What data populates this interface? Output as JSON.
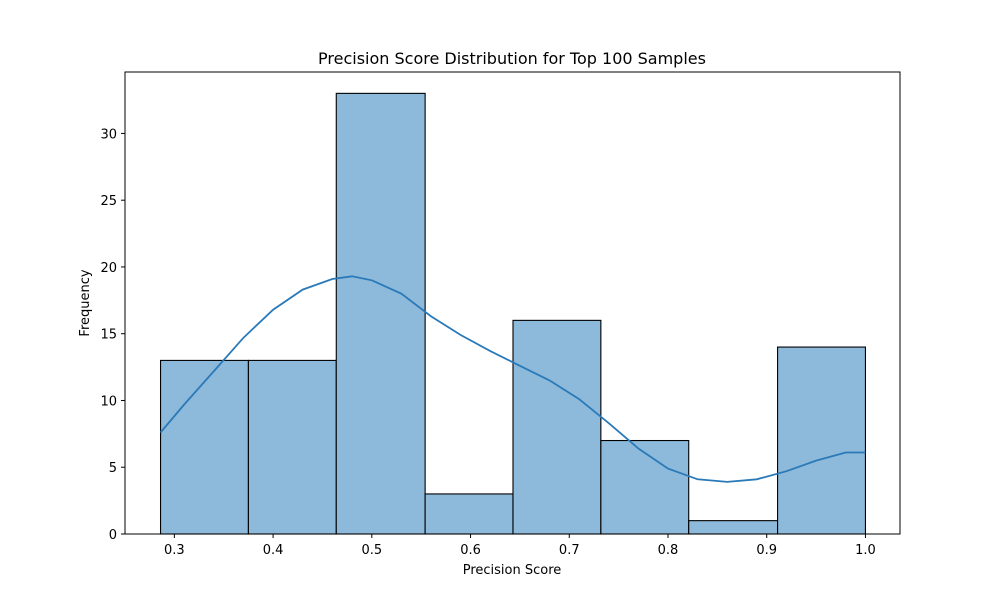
{
  "chart_data": {
    "type": "bar",
    "title": "Precision Score Distribution for Top 100 Samples",
    "xlabel": "Precision Score",
    "ylabel": "Frequency",
    "xlim": [
      0.25,
      1.035
    ],
    "ylim": [
      0,
      34.6
    ],
    "grid": false,
    "bins": [
      {
        "start": 0.286,
        "end": 0.375,
        "count": 13
      },
      {
        "start": 0.375,
        "end": 0.464,
        "count": 13
      },
      {
        "start": 0.464,
        "end": 0.554,
        "count": 33
      },
      {
        "start": 0.554,
        "end": 0.643,
        "count": 3
      },
      {
        "start": 0.643,
        "end": 0.732,
        "count": 16
      },
      {
        "start": 0.732,
        "end": 0.821,
        "count": 7
      },
      {
        "start": 0.821,
        "end": 0.911,
        "count": 1
      },
      {
        "start": 0.911,
        "end": 1.0,
        "count": 14
      }
    ],
    "kde": {
      "x": [
        0.286,
        0.31,
        0.34,
        0.37,
        0.4,
        0.43,
        0.46,
        0.48,
        0.5,
        0.53,
        0.56,
        0.59,
        0.62,
        0.65,
        0.68,
        0.71,
        0.74,
        0.77,
        0.8,
        0.83,
        0.86,
        0.89,
        0.92,
        0.95,
        0.98,
        1.0
      ],
      "y": [
        7.6,
        9.7,
        12.2,
        14.7,
        16.8,
        18.3,
        19.1,
        19.3,
        19.0,
        18.0,
        16.3,
        14.9,
        13.7,
        12.6,
        11.5,
        10.1,
        8.3,
        6.4,
        4.9,
        4.1,
        3.9,
        4.1,
        4.7,
        5.5,
        6.1,
        6.1
      ]
    },
    "x_ticks": [
      "0.3",
      "0.4",
      "0.5",
      "0.6",
      "0.7",
      "0.8",
      "0.9",
      "1.0"
    ],
    "x_tick_values": [
      0.3,
      0.4,
      0.5,
      0.6,
      0.7,
      0.8,
      0.9,
      1.0
    ],
    "y_ticks": [
      "0",
      "5",
      "10",
      "15",
      "20",
      "25",
      "30"
    ],
    "y_tick_values": [
      0,
      5,
      10,
      15,
      20,
      25,
      30
    ],
    "colors": {
      "bar": "#8db9da",
      "line": "#2a7ab9"
    }
  }
}
